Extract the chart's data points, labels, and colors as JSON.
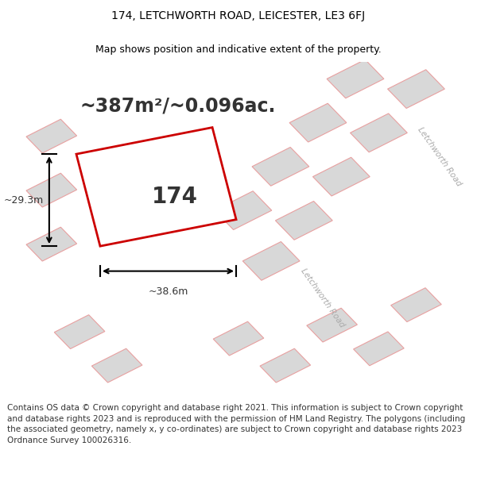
{
  "title_line1": "174, LETCHWORTH ROAD, LEICESTER, LE3 6FJ",
  "title_line2": "Map shows position and indicative extent of the property.",
  "area_text": "~387m²/~0.096ac.",
  "property_number": "174",
  "dim_width": "~38.6m",
  "dim_height": "~29.3m",
  "footer": "Contains OS data © Crown copyright and database right 2021. This information is subject to Crown copyright and database rights 2023 and is reproduced with the permission of HM Land Registry. The polygons (including the associated geometry, namely x, y co-ordinates) are subject to Crown copyright and database rights 2023 Ordnance Survey 100026316.",
  "bg_color": "#ffffff",
  "map_bg": "#f5f5f5",
  "road_color": "#ffffff",
  "plot_fill": "#ffffff",
  "plot_edge": "#cc0000",
  "neighbor_fill": "#d8d8d8",
  "neighbor_edge": "#e8a0a0",
  "road_label_color": "#aaaaaa",
  "title_fontsize": 10,
  "subtitle_fontsize": 9,
  "area_fontsize": 17,
  "number_fontsize": 20,
  "footer_fontsize": 7.5
}
